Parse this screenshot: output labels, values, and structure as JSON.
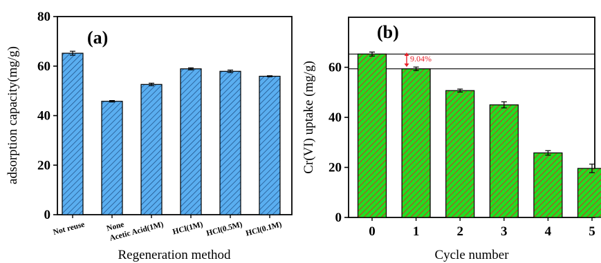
{
  "chart_data": [
    {
      "type": "bar",
      "panel_label": "(a)",
      "categories": [
        "Not reuse",
        "None",
        "Acetic Acid(1M)",
        "HCl(1M)",
        "HCl(0.5M)",
        "HCl(0.1M)"
      ],
      "values": [
        65.2,
        45.8,
        52.6,
        58.9,
        57.9,
        55.9
      ],
      "errors": [
        0.8,
        0.3,
        0.5,
        0.4,
        0.5,
        0.2
      ],
      "xlabel": "Regeneration method",
      "ylabel": "adsorption capacity(mg/g)",
      "ylim": [
        0,
        80
      ],
      "yticks": [
        0,
        20,
        40,
        60,
        80
      ],
      "bar_color": "#5aaef0",
      "hatch_color": "#1a4a80",
      "grid": false
    },
    {
      "type": "bar",
      "panel_label": "(b)",
      "categories": [
        "0",
        "1",
        "2",
        "3",
        "4",
        "5"
      ],
      "values": [
        65.3,
        59.4,
        50.7,
        45.0,
        25.8,
        19.6
      ],
      "errors": [
        0.8,
        0.7,
        0.6,
        1.2,
        0.9,
        1.7
      ],
      "xlabel": "Cycle number",
      "ylabel": "Cr(VI)  uptake (mg/g)",
      "ylim": [
        0,
        80
      ],
      "yticks": [
        0,
        20,
        40,
        60
      ],
      "bar_color": "#22dd22",
      "hatch_color": "#e02020",
      "reference_lines": [
        65.3,
        59.4
      ],
      "annotation": "9.04%",
      "annotation_color": "#e8212a",
      "grid": false
    }
  ]
}
